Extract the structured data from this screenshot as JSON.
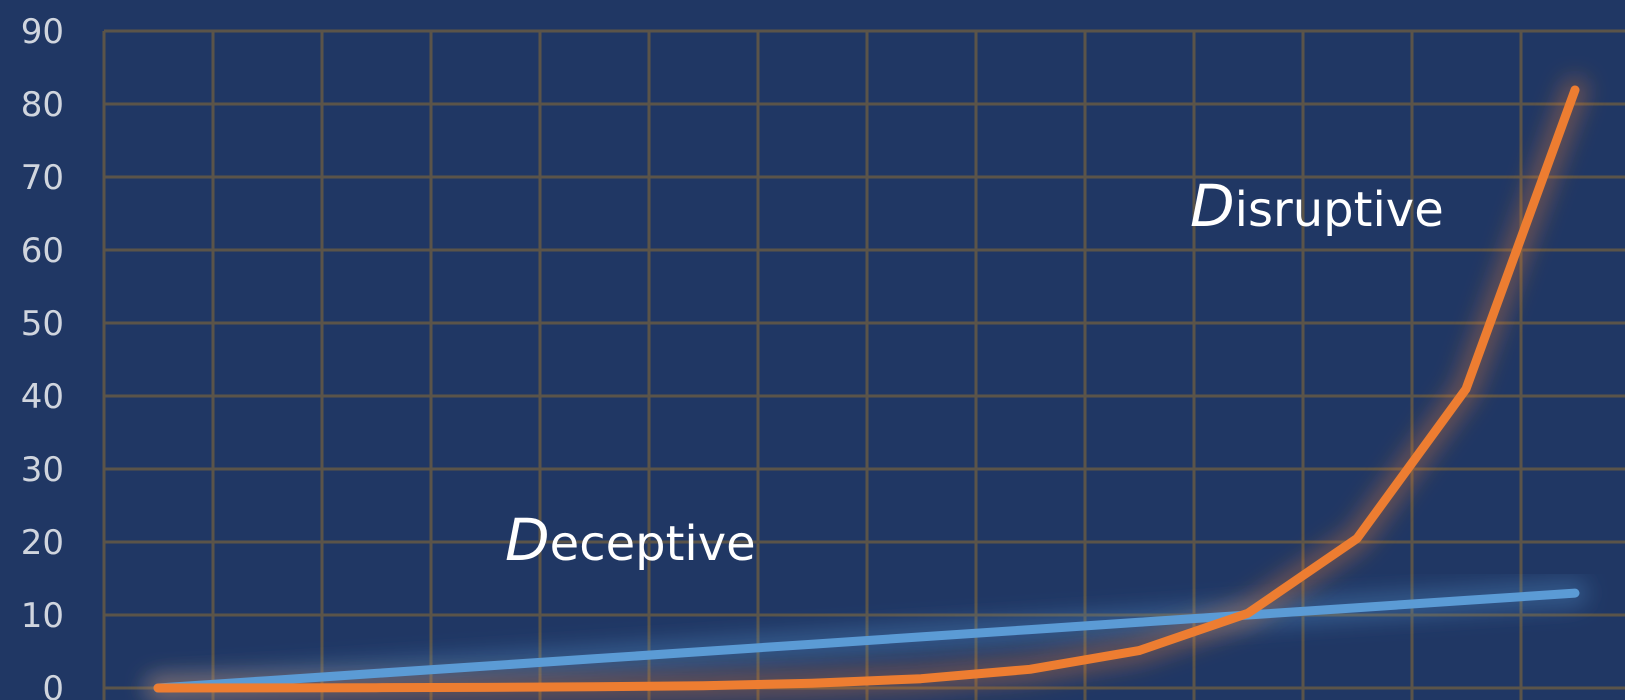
{
  "chart_data": {
    "type": "line",
    "title": "",
    "xlabel": "",
    "ylabel": "",
    "ylim": [
      0,
      90
    ],
    "yticks": [
      0,
      10,
      20,
      30,
      40,
      50,
      60,
      70,
      80,
      90
    ],
    "grid": true,
    "background_color": "#203764",
    "grid_color": "#5b5449",
    "x": [
      1,
      2,
      3,
      4,
      5,
      6,
      7,
      8,
      9,
      10,
      11,
      12,
      13,
      14
    ],
    "series": [
      {
        "color": "#5b9bd5",
        "values": [
          0,
          1,
          2,
          3,
          4,
          5,
          6,
          7,
          8,
          9,
          10,
          11,
          12,
          13
        ]
      },
      {
        "color": "#ed7d31",
        "values": [
          0,
          0.02,
          0.04,
          0.08,
          0.16,
          0.32,
          0.64,
          1.28,
          2.56,
          5.12,
          10.24,
          20.48,
          40.96,
          81.92
        ]
      }
    ],
    "annotations": [
      {
        "initial": "D",
        "rest": "eceptive",
        "text": "Deceptive"
      },
      {
        "initial": "D",
        "rest": "isruptive",
        "text": "Disruptive"
      }
    ]
  }
}
